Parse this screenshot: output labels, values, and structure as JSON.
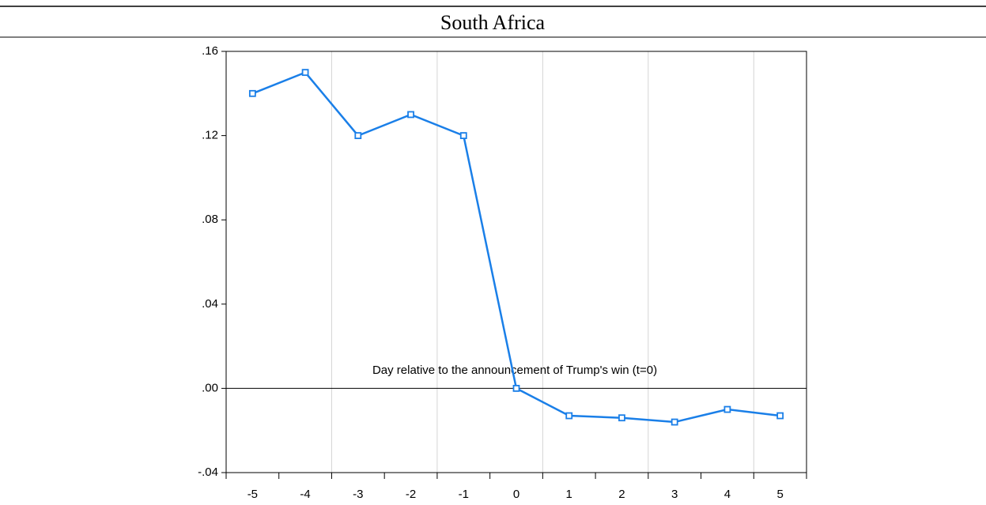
{
  "chart_data": {
    "type": "line",
    "title": "South Africa",
    "annotation": "Day relative to the announcement of Trump's win (t=0)",
    "categories": [
      "-5",
      "-4",
      "-3",
      "-2",
      "-1",
      "0",
      "1",
      "2",
      "3",
      "4",
      "5"
    ],
    "series": [
      {
        "name": "South Africa",
        "color": "#1a7fe8",
        "values": [
          0.14,
          0.15,
          0.12,
          0.13,
          0.12,
          0.0,
          -0.013,
          -0.014,
          -0.016,
          -0.01,
          -0.013
        ]
      }
    ],
    "ylim": [
      -0.04,
      0.16
    ],
    "yticks": [
      {
        "value": -0.04,
        "label": "-.04"
      },
      {
        "value": 0.0,
        "label": ".00"
      },
      {
        "value": 0.04,
        "label": ".04"
      },
      {
        "value": 0.08,
        "label": ".08"
      },
      {
        "value": 0.12,
        "label": ".12"
      },
      {
        "value": 0.16,
        "label": ".16"
      }
    ],
    "grid": true
  }
}
